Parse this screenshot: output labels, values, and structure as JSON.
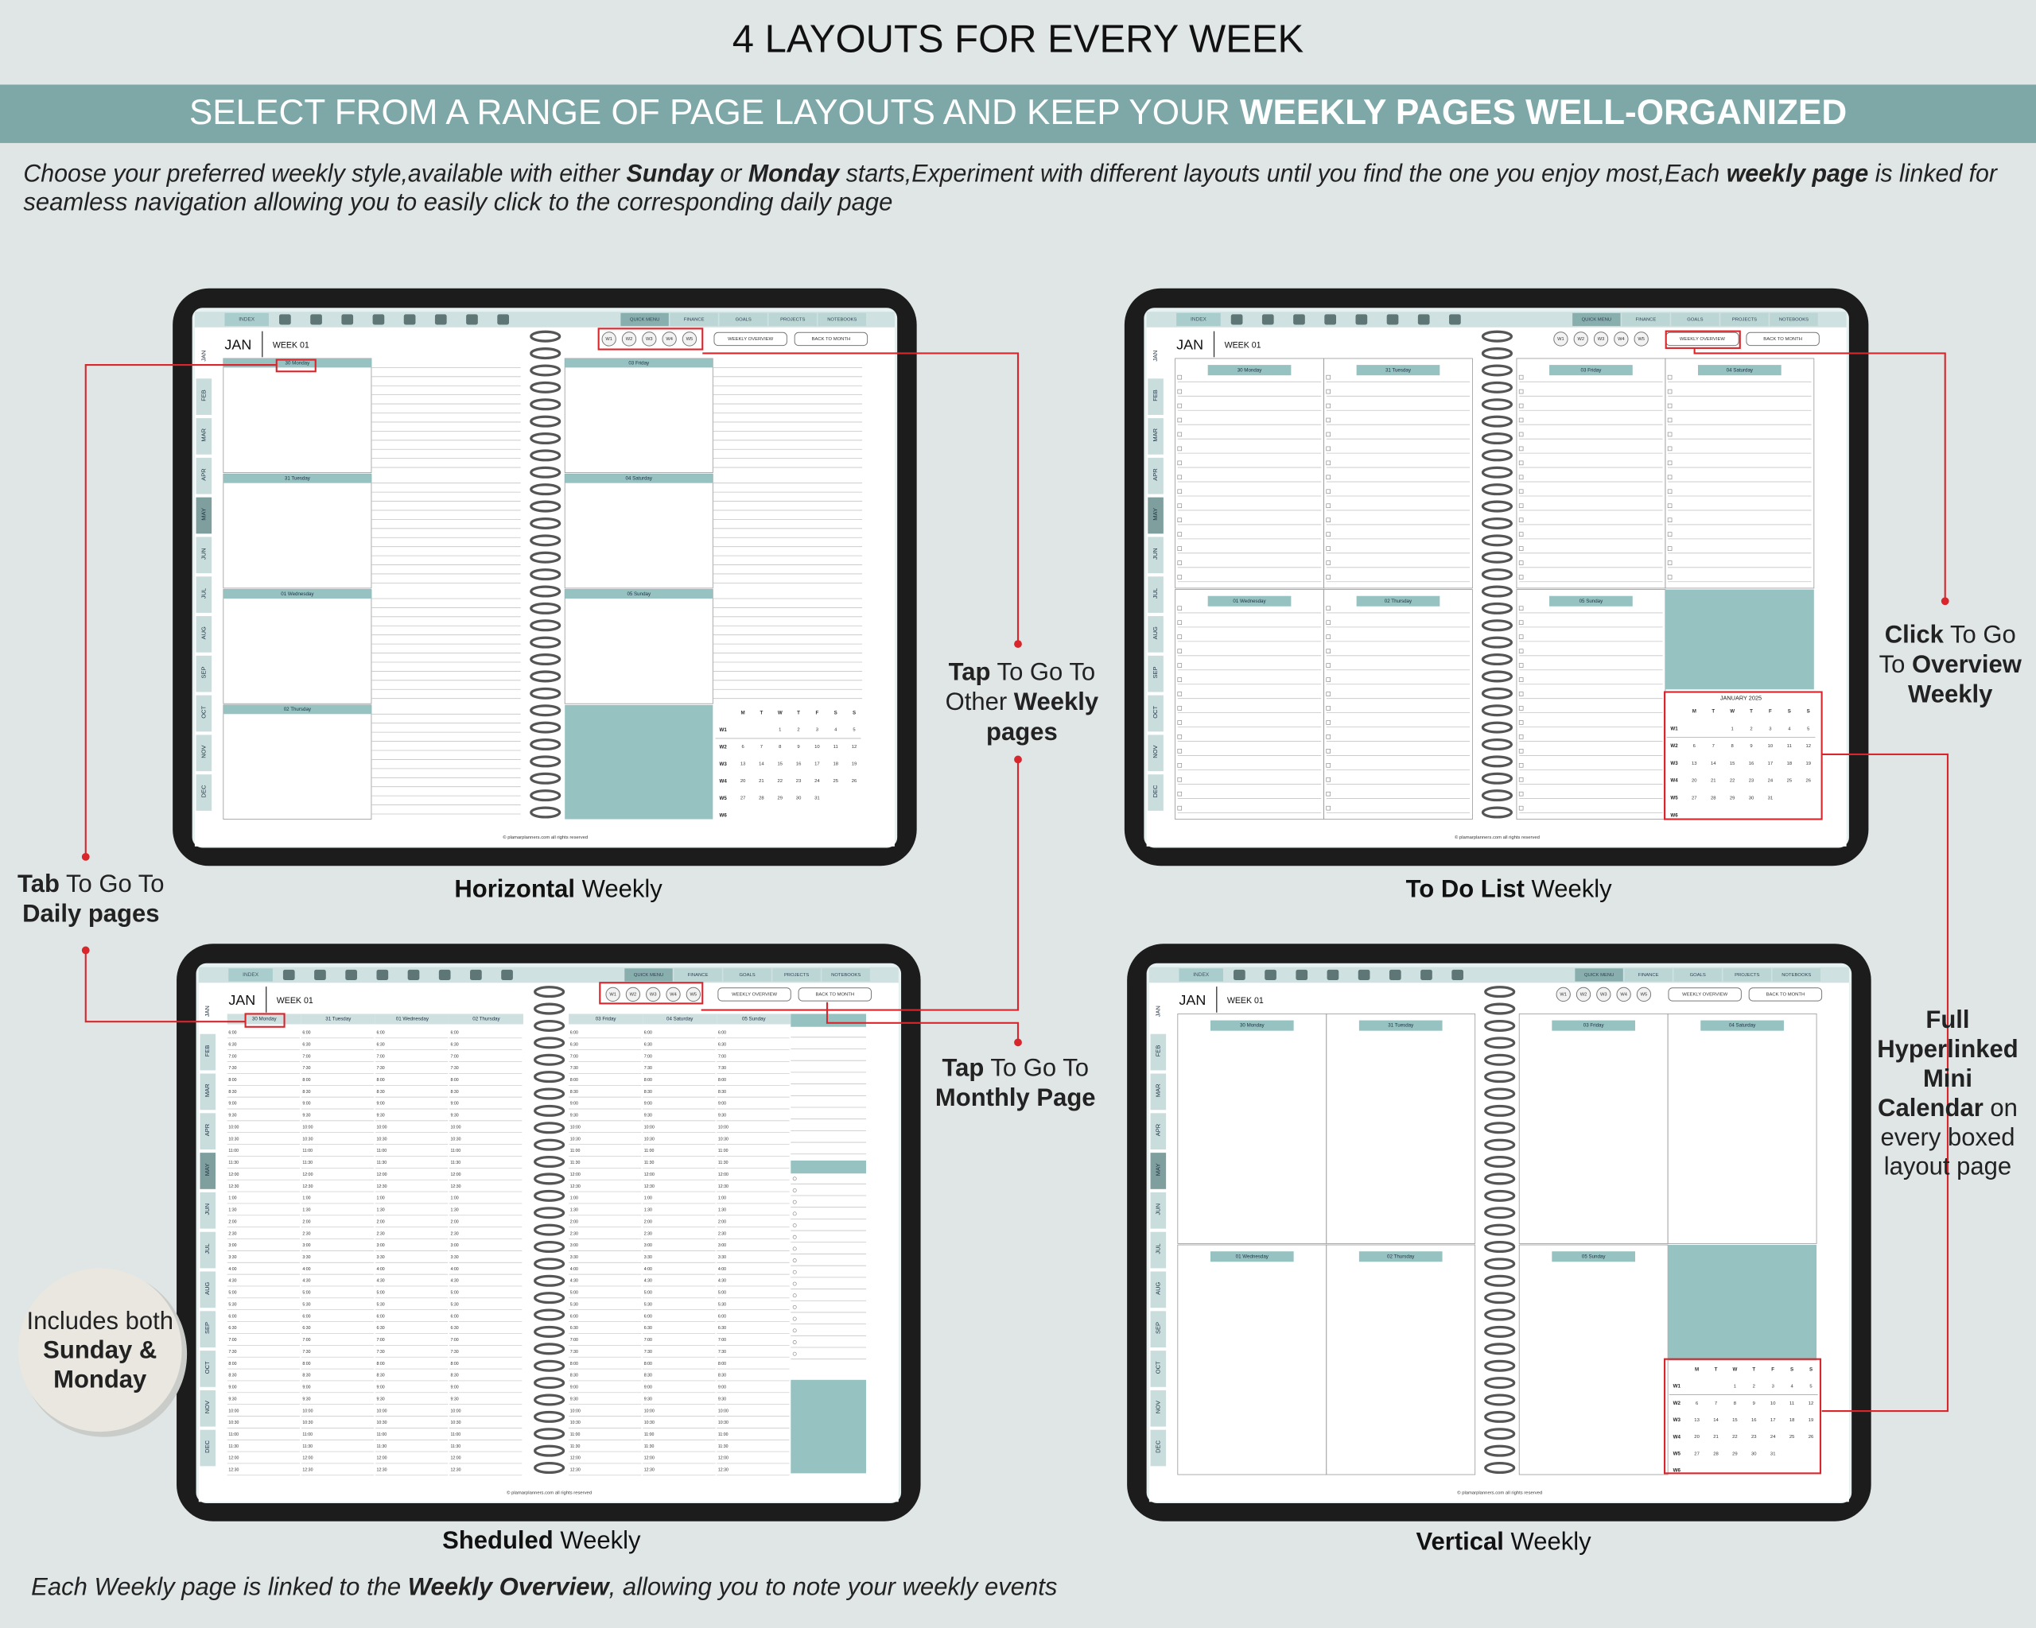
{
  "header": {
    "title": "4 LAYOUTS FOR EVERY WEEK",
    "banner": [
      {
        "text": "SELECT FROM A RANGE OF PAGE LAYOUTS AND KEEP YOUR "
      },
      {
        "text": "WEEKLY PAGES WELL-ORGANIZED",
        "bold": true
      }
    ],
    "intro": [
      [
        {
          "text": "Choose your preferred weekly style,available with either "
        },
        {
          "text": "Sunday",
          "bold": true
        },
        {
          "text": " or "
        },
        {
          "text": "Monday",
          "bold": true
        },
        {
          "text": " starts,Experiment with different layouts until you find the one you enjoy most,Each "
        },
        {
          "text": "weekly page",
          "bold": true
        },
        {
          "text": " is linked for"
        }
      ],
      [
        {
          "text": "seamless navigation allowing you to easily click to the corresponding daily page"
        }
      ]
    ]
  },
  "layouts": [
    {
      "caption": [
        {
          "text": "Horizontal",
          "bold": true
        },
        {
          "text": " Weekly"
        }
      ]
    },
    {
      "caption": [
        {
          "text": "To Do List",
          "bold": true
        },
        {
          "text": " Weekly"
        }
      ]
    },
    {
      "caption": [
        {
          "text": "Sheduled",
          "bold": true
        },
        {
          "text": " Weekly"
        }
      ]
    },
    {
      "caption": [
        {
          "text": "Vertical",
          "bold": true
        },
        {
          "text": " Weekly"
        }
      ]
    }
  ],
  "callouts": {
    "daily": [
      [
        {
          "text": "Tab",
          "bold": true
        },
        {
          "text": " To Go To"
        }
      ],
      [
        {
          "text": "Daily pages",
          "bold": true
        }
      ]
    ],
    "other_weeks": [
      [
        {
          "text": "Tap",
          "bold": true
        },
        {
          "text": " To Go To"
        }
      ],
      [
        {
          "text": "Other "
        },
        {
          "text": "Weekly",
          "bold": true
        }
      ],
      [
        {
          "text": "pages",
          "bold": true
        }
      ]
    ],
    "monthly": [
      [
        {
          "text": "Tap",
          "bold": true
        },
        {
          "text": " To Go To"
        }
      ],
      [
        {
          "text": "Monthly Page",
          "bold": true
        }
      ]
    ],
    "overview": [
      [
        {
          "text": "Click",
          "bold": true
        },
        {
          "text": " To Go"
        }
      ],
      [
        {
          "text": "To "
        },
        {
          "text": "Overview",
          "bold": true
        }
      ],
      [
        {
          "text": "Weekly",
          "bold": true
        }
      ]
    ],
    "mini_calendar": [
      [
        {
          "text": "Full",
          "bold": true
        }
      ],
      [
        {
          "text": "Hyperlinked",
          "bold": true
        }
      ],
      [
        {
          "text": "Mini",
          "bold": true
        }
      ],
      [
        {
          "text": "Calendar",
          "bold": true
        },
        {
          "text": " on"
        }
      ],
      [
        {
          "text": "every boxed"
        }
      ],
      [
        {
          "text": "layout page"
        }
      ]
    ],
    "starts": [
      [
        {
          "text": "Includes both"
        }
      ],
      [
        {
          "text": "Sunday &",
          "bold": true
        }
      ],
      [
        {
          "text": "Monday",
          "bold": true
        }
      ]
    ]
  },
  "footer": [
    {
      "text": "Each Weekly page is linked to the "
    },
    {
      "text": "Weekly Overview",
      "bold": true
    },
    {
      "text": ", allowing you to note your weekly events"
    }
  ],
  "planner": {
    "month": "JAN",
    "week": "WEEK 01",
    "months": [
      "JAN",
      "FEB",
      "MAR",
      "APR",
      "MAY",
      "JUN",
      "JUL",
      "AUG",
      "SEP",
      "OCT",
      "NOV",
      "DEC"
    ],
    "nav_tabs": [
      "INDEX"
    ],
    "top_tabs": [
      "QUICK MENU",
      "FINANCE",
      "GOALS",
      "PROJECTS",
      "NOTEBOOKS"
    ],
    "week_buttons": [
      "W1",
      "W2",
      "W3",
      "W4",
      "W5"
    ],
    "buttons": [
      "WEEKLY OVERVIEW",
      "BACK TO MONTH"
    ],
    "days": [
      "30 Monday",
      "31 Tuesday",
      "01 Wednesday",
      "02 Thursday",
      "03 Friday",
      "04 Saturday",
      "05 Sunday"
    ],
    "times": [
      "6:00",
      "6:30",
      "7:00",
      "7:30",
      "8:00",
      "8:30",
      "9:00",
      "9:30",
      "10:00",
      "10:30",
      "11:00",
      "11:30",
      "12:00",
      "12:30",
      "1:00",
      "1:30",
      "2:00",
      "2:30",
      "3:00",
      "3:30",
      "4:00",
      "4:30",
      "5:00",
      "5:30",
      "6:00",
      "6:30",
      "7:00",
      "7:30",
      "8:00",
      "8:30",
      "9:00",
      "9:30",
      "10:00",
      "10:30",
      "11:00",
      "11:30",
      "12:00",
      "12:30"
    ],
    "calendar": {
      "title": "JANUARY 2025",
      "weekdays": [
        "M",
        "T",
        "W",
        "T",
        "F",
        "S",
        "S"
      ],
      "weeks": [
        {
          "label": "W1",
          "days": [
            null,
            null,
            1,
            2,
            3,
            4,
            5
          ]
        },
        {
          "label": "W2",
          "days": [
            6,
            7,
            8,
            9,
            10,
            11,
            12
          ]
        },
        {
          "label": "W3",
          "days": [
            13,
            14,
            15,
            16,
            17,
            18,
            19
          ]
        },
        {
          "label": "W4",
          "days": [
            20,
            21,
            22,
            23,
            24,
            25,
            26
          ]
        },
        {
          "label": "W5",
          "days": [
            27,
            28,
            29,
            30,
            31,
            null,
            null
          ]
        },
        {
          "label": "W6",
          "days": [
            null,
            null,
            null,
            null,
            null,
            null,
            null
          ]
        }
      ]
    },
    "footer": "© plamarplanners.com all rights reserved"
  }
}
